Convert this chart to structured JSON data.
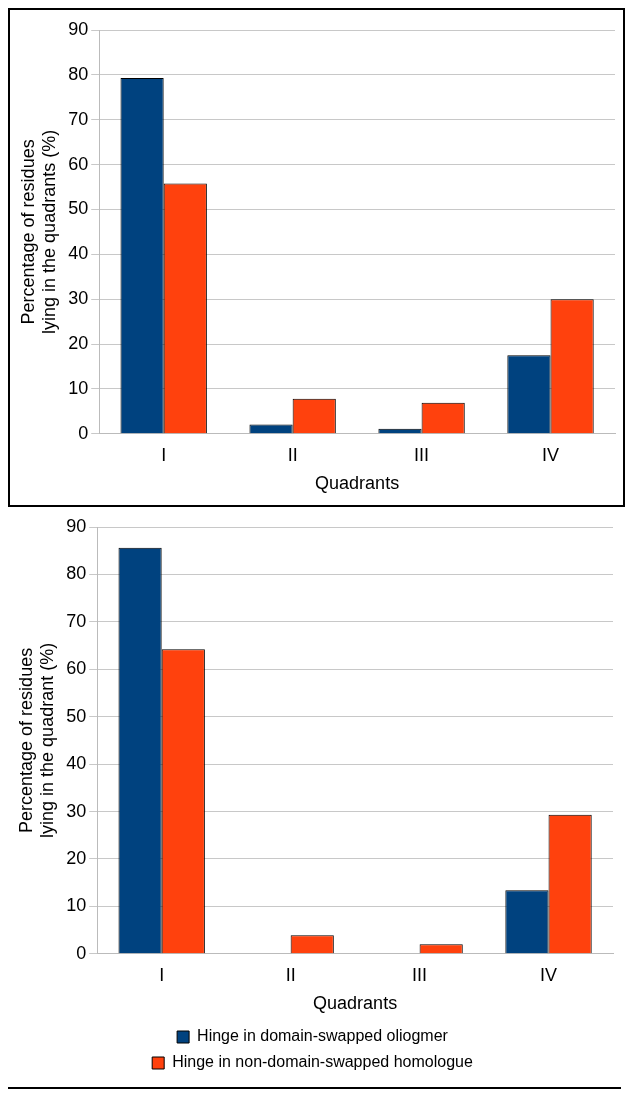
{
  "chart_data": [
    {
      "type": "bar",
      "categories": [
        "I",
        "II",
        "III",
        "IV"
      ],
      "xlabel": "Quadrants",
      "ylabel": "Percentage of residues lying in the quadrants (%)",
      "ylim": [
        0,
        90
      ],
      "yticks": [
        0,
        10,
        20,
        30,
        40,
        50,
        60,
        70,
        80,
        90
      ],
      "grid": "y",
      "legend": false,
      "series": [
        {
          "color": "#00427f",
          "values": [
            79.3,
            2.1,
            1.1,
            17.5
          ]
        },
        {
          "color": "#ff410d",
          "values": [
            55.8,
            7.8,
            6.9,
            30.0
          ]
        }
      ]
    },
    {
      "type": "bar",
      "categories": [
        "I",
        "II",
        "III",
        "IV"
      ],
      "xlabel": "Quadrants",
      "ylabel": "Percentage of residues lying in the quadrant (%)",
      "ylim": [
        0,
        90
      ],
      "yticks": [
        0,
        10,
        20,
        30,
        40,
        50,
        60,
        70,
        80,
        90
      ],
      "grid": "y",
      "legend": "bottom",
      "series": [
        {
          "name": "Hinge in domain-swapped oliogmer",
          "color": "#00427f",
          "values": [
            85.6,
            0,
            0,
            13.4
          ]
        },
        {
          "name": "Hinge in non-domain-swapped homologue",
          "color": "#ff410d",
          "values": [
            64.2,
            3.9,
            2.0,
            29.3
          ]
        }
      ]
    }
  ]
}
